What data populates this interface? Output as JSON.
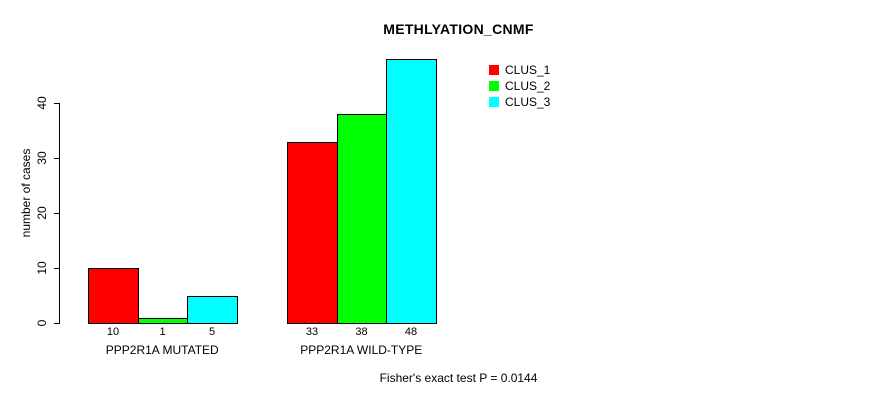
{
  "title": "METHLYATION_CNMF",
  "footer": "Fisher's exact test P = 0.0144",
  "chart_data": {
    "type": "bar",
    "title": "METHLYATION_CNMF",
    "xlabel": "",
    "ylabel": "number of cases",
    "ylim": [
      0,
      40
    ],
    "yticks": [
      0,
      10,
      20,
      30,
      40
    ],
    "categories": [
      "PPP2R1A MUTATED",
      "PPP2R1A WILD-TYPE"
    ],
    "series": [
      {
        "name": "CLUS_1",
        "color": "#ff0000",
        "values": [
          10,
          33
        ]
      },
      {
        "name": "CLUS_2",
        "color": "#00ff00",
        "values": [
          1,
          38
        ]
      },
      {
        "name": "CLUS_3",
        "color": "#00ffff",
        "values": [
          5,
          48
        ]
      }
    ],
    "bar_value_labels": [
      [
        10,
        1,
        5
      ],
      [
        33,
        38,
        48
      ]
    ],
    "legend_position": "top-right",
    "grid": false,
    "annotation": "Fisher's exact test P = 0.0144"
  }
}
